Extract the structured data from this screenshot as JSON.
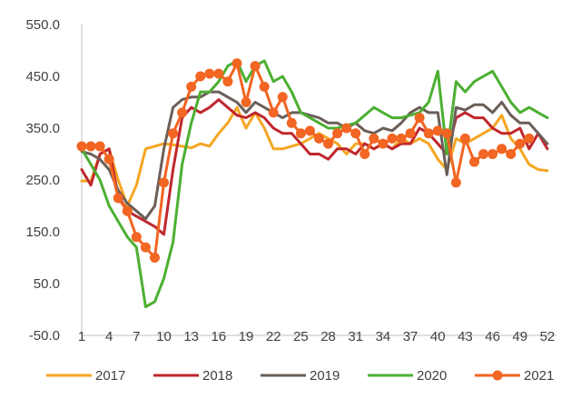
{
  "chart_data": {
    "type": "line",
    "title": "",
    "xlabel": "",
    "ylabel": "",
    "ylim": [
      -50,
      550
    ],
    "xlim": [
      1,
      53
    ],
    "y_ticks": [
      -50,
      50,
      150,
      250,
      350,
      450,
      550
    ],
    "y_tick_labels": [
      "-50.0",
      "50.0",
      "150.0",
      "250.0",
      "350.0",
      "450.0",
      "550.0"
    ],
    "x_ticks": [
      1,
      4,
      7,
      10,
      13,
      16,
      19,
      22,
      25,
      28,
      31,
      34,
      37,
      40,
      43,
      46,
      49,
      52
    ],
    "x_tick_labels": [
      "1",
      "4",
      "7",
      "10",
      "13",
      "16",
      "19",
      "22",
      "25",
      "28",
      "31",
      "34",
      "37",
      "40",
      "43",
      "46",
      "49",
      "52"
    ],
    "grid": false,
    "legend_position": "bottom",
    "x": [
      1,
      2,
      3,
      4,
      5,
      6,
      7,
      8,
      9,
      10,
      11,
      12,
      13,
      14,
      15,
      16,
      17,
      18,
      19,
      20,
      21,
      22,
      23,
      24,
      25,
      26,
      27,
      28,
      29,
      30,
      31,
      32,
      33,
      34,
      35,
      36,
      37,
      38,
      39,
      40,
      41,
      42,
      43,
      44,
      45,
      46,
      47,
      48,
      49,
      50,
      51,
      52,
      53
    ],
    "series": [
      {
        "name": "2017",
        "color": "#f5a623",
        "markers": false,
        "values": [
          248,
          248,
          300,
          310,
          250,
          200,
          240,
          310,
          315,
          320,
          318,
          315,
          312,
          320,
          315,
          340,
          360,
          390,
          350,
          380,
          350,
          310,
          310,
          315,
          320,
          330,
          340,
          330,
          320,
          300,
          320,
          320,
          310,
          320,
          310,
          330,
          320,
          330,
          320,
          290,
          270,
          330,
          320,
          330,
          340,
          350,
          375,
          330,
          310,
          280,
          270,
          268,
          null
        ]
      },
      {
        "name": "2018",
        "color": "#c0272d",
        "markers": false,
        "values": [
          270,
          240,
          300,
          310,
          220,
          190,
          180,
          170,
          160,
          145,
          270,
          370,
          390,
          380,
          390,
          405,
          390,
          375,
          370,
          380,
          370,
          350,
          340,
          340,
          320,
          300,
          300,
          290,
          310,
          310,
          300,
          320,
          310,
          320,
          310,
          320,
          320,
          350,
          340,
          320,
          300,
          370,
          380,
          370,
          370,
          350,
          340,
          340,
          350,
          310,
          340,
          310,
          null
        ]
      },
      {
        "name": "2019",
        "color": "#6b5e58",
        "markers": false,
        "values": [
          305,
          300,
          290,
          270,
          230,
          205,
          190,
          175,
          200,
          310,
          390,
          405,
          410,
          410,
          420,
          420,
          410,
          400,
          380,
          400,
          390,
          380,
          370,
          380,
          380,
          375,
          370,
          360,
          360,
          350,
          360,
          345,
          340,
          350,
          345,
          360,
          380,
          390,
          380,
          380,
          260,
          390,
          385,
          395,
          395,
          380,
          400,
          375,
          360,
          360,
          340,
          320,
          null
        ]
      },
      {
        "name": "2020",
        "color": "#4caf32",
        "markers": false,
        "values": [
          310,
          280,
          250,
          200,
          170,
          140,
          120,
          5,
          15,
          60,
          130,
          280,
          360,
          420,
          420,
          440,
          470,
          480,
          440,
          470,
          480,
          440,
          450,
          420,
          380,
          370,
          360,
          350,
          350,
          355,
          360,
          375,
          390,
          380,
          370,
          370,
          375,
          380,
          400,
          460,
          300,
          440,
          420,
          440,
          450,
          460,
          430,
          400,
          380,
          390,
          380,
          370,
          null
        ]
      },
      {
        "name": "2021",
        "color": "#f26522",
        "markers": true,
        "values": [
          315,
          315,
          315,
          290,
          215,
          190,
          140,
          120,
          100,
          245,
          340,
          380,
          430,
          450,
          455,
          455,
          440,
          475,
          400,
          470,
          430,
          380,
          410,
          360,
          340,
          345,
          330,
          320,
          340,
          350,
          340,
          300,
          330,
          320,
          330,
          330,
          340,
          370,
          340,
          345,
          340,
          245,
          330,
          285,
          300,
          300,
          310,
          300,
          320,
          330,
          null,
          null,
          null
        ]
      }
    ]
  }
}
